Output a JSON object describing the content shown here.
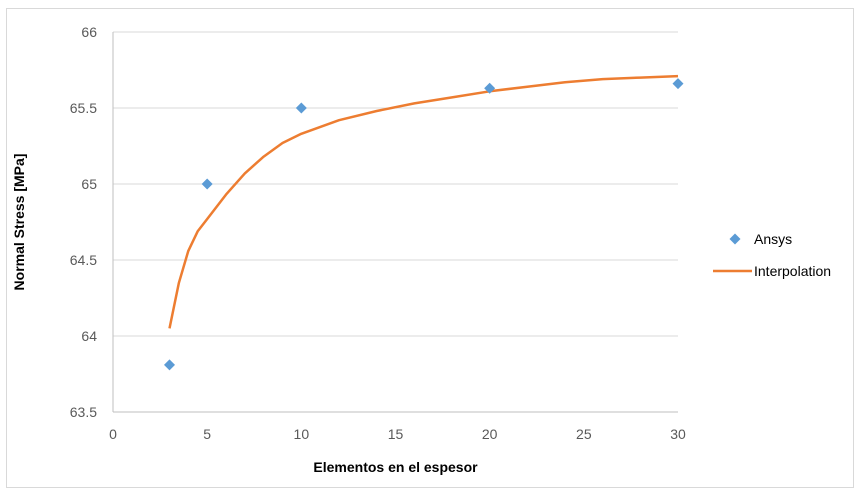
{
  "chart_data": {
    "type": "scatter",
    "xlabel": "Elementos en el espesor",
    "ylabel": "Normal Stress [MPa]",
    "xlim": [
      0,
      30
    ],
    "ylim": [
      63.5,
      66
    ],
    "xticks": [
      "0",
      "5",
      "10",
      "15",
      "20",
      "25",
      "30"
    ],
    "yticks": [
      "63.5",
      "64",
      "64.5",
      "65",
      "65.5",
      "66"
    ],
    "grid": "horizontal",
    "legend_position": "right",
    "series": [
      {
        "name": "Ansys",
        "type": "scatter",
        "marker": "diamond",
        "color": "#5b9bd5",
        "x": [
          3,
          5,
          10,
          20,
          30
        ],
        "y": [
          63.81,
          65.0,
          65.5,
          65.63,
          65.66
        ]
      },
      {
        "name": "Interpolation",
        "type": "line",
        "color": "#ed7d31",
        "x": [
          3,
          3.5,
          4,
          4.5,
          5,
          6,
          7,
          8,
          9,
          10,
          12,
          14,
          16,
          18,
          20,
          22,
          24,
          26,
          28,
          30
        ],
        "y": [
          64.05,
          64.35,
          64.56,
          64.69,
          64.77,
          64.93,
          65.07,
          65.18,
          65.27,
          65.33,
          65.42,
          65.48,
          65.53,
          65.57,
          65.61,
          65.64,
          65.67,
          65.69,
          65.7,
          65.71
        ]
      }
    ]
  }
}
